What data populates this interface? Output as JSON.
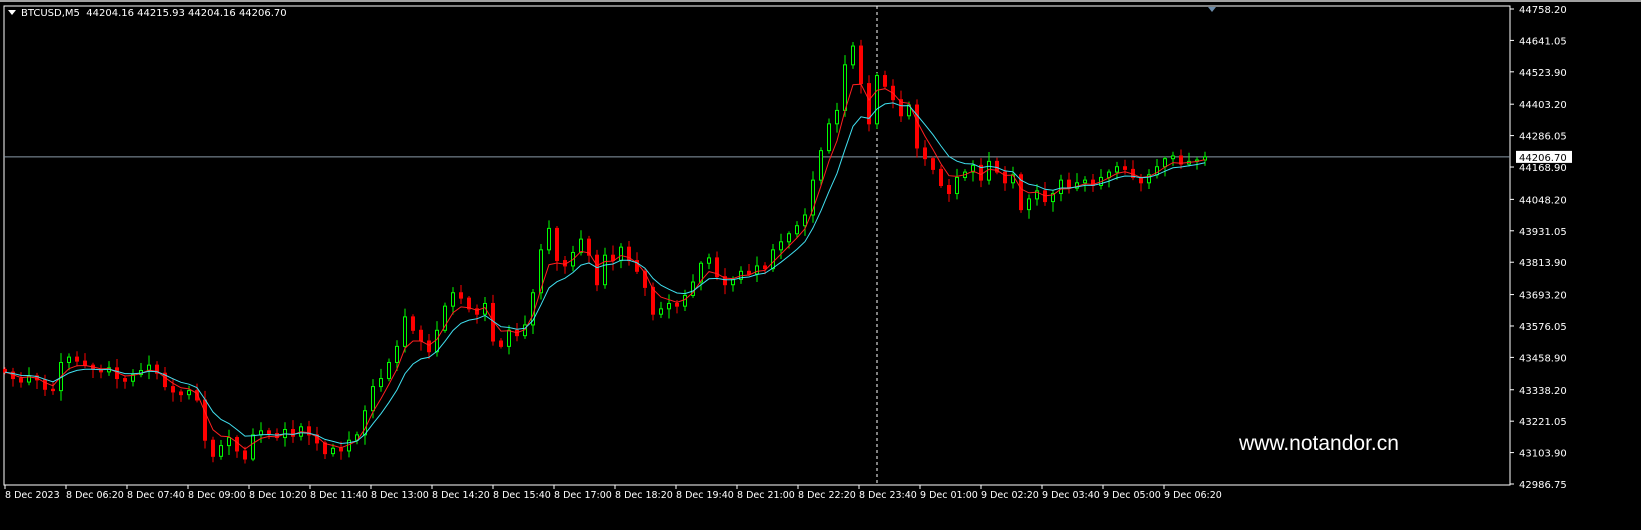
{
  "header": {
    "symbol": "BTCUSD,M5",
    "ohlc": "44204.16 44215.93 44204.16 44206.70"
  },
  "watermark": "www.notandor.cn",
  "colors": {
    "background": "#000000",
    "bull": "#00ff00",
    "bear": "#ff0000",
    "ma_fast": "#ff2020",
    "ma_slow": "#40e0f0",
    "grid": "#ffffff"
  },
  "chart_data": {
    "type": "candlestick",
    "price_axis": {
      "range": [
        42986.75,
        44758.2
      ],
      "ticks": [
        "44758.20",
        "44641.05",
        "44523.90",
        "44403.20",
        "44286.05",
        "44168.90",
        "44048.20",
        "43931.05",
        "43813.90",
        "43693.20",
        "43576.05",
        "43458.90",
        "43338.20",
        "43221.05",
        "43103.90",
        "42986.75"
      ]
    },
    "current_price": "44206.70",
    "time_axis": {
      "ticks": [
        "8 Dec 2023",
        "8 Dec 06:20",
        "8 Dec 07:40",
        "8 Dec 09:00",
        "8 Dec 10:20",
        "8 Dec 11:40",
        "8 Dec 13:00",
        "8 Dec 14:20",
        "8 Dec 15:40",
        "8 Dec 17:00",
        "8 Dec 18:20",
        "8 Dec 19:40",
        "8 Dec 21:00",
        "8 Dec 22:20",
        "8 Dec 23:40",
        "9 Dec 01:00",
        "9 Dec 02:20",
        "9 Dec 03:40",
        "9 Dec 05:00",
        "9 Dec 06:20"
      ]
    },
    "closes": [
      43404,
      43380,
      43367,
      43390,
      43375,
      43340,
      43335,
      43440,
      43460,
      43445,
      43430,
      43415,
      43405,
      43420,
      43380,
      43370,
      43395,
      43410,
      43430,
      43400,
      43350,
      43330,
      43320,
      43335,
      43300,
      43150,
      43090,
      43130,
      43160,
      43110,
      43080,
      43170,
      43185,
      43175,
      43160,
      43190,
      43165,
      43200,
      43170,
      43140,
      43100,
      43120,
      43110,
      43150,
      43170,
      43260,
      43350,
      43380,
      43440,
      43500,
      43610,
      43560,
      43520,
      43480,
      43560,
      43650,
      43700,
      43680,
      43640,
      43620,
      43660,
      43520,
      43500,
      43560,
      43540,
      43580,
      43700,
      43860,
      43940,
      43820,
      43800,
      43850,
      43900,
      43840,
      43730,
      43840,
      43820,
      43870,
      43820,
      43780,
      43720,
      43620,
      43640,
      43660,
      43650,
      43690,
      43740,
      43810,
      43830,
      43760,
      43730,
      43750,
      43780,
      43770,
      43800,
      43790,
      43860,
      43890,
      43920,
      43950,
      43990,
      44120,
      44230,
      44330,
      44380,
      44550,
      44620,
      44480,
      44330,
      44510,
      44470,
      44420,
      44360,
      44400,
      44240,
      44200,
      44160,
      44100,
      44070,
      44130,
      44150,
      44175,
      44120,
      44190,
      44150,
      44110,
      44140,
      44010,
      44050,
      44080,
      44040,
      44070,
      44120,
      44090,
      44110,
      44120,
      44100,
      44130,
      44150,
      44170,
      44160,
      44130,
      44110,
      44140,
      44170,
      44200,
      44210,
      44180,
      44190,
      44195,
      44206.7
    ],
    "crosshair_time": "8 Dec 23:40"
  }
}
